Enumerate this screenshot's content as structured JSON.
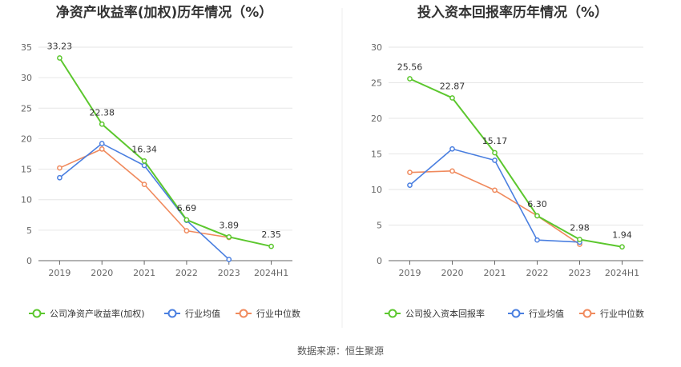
{
  "source": "数据来源：恒生聚源",
  "legend_labels": {
    "average": "行业均值",
    "median": "行业中位数"
  },
  "colors": {
    "company": "#5cc72e",
    "average": "#4a7fe0",
    "median": "#f08a5d"
  },
  "chart_data": [
    {
      "type": "line",
      "title": "净资产收益率(加权)历年情况（%）",
      "categories": [
        "2019",
        "2020",
        "2021",
        "2022",
        "2023",
        "2024H1"
      ],
      "ylim": [
        0,
        35
      ],
      "yticks": [
        0,
        5,
        10,
        15,
        20,
        25,
        30,
        35
      ],
      "grid": true,
      "legend": "bottom",
      "series": [
        {
          "name": "公司净资产收益率(加权)",
          "key": "company",
          "values": [
            33.23,
            22.38,
            16.34,
            6.69,
            3.89,
            2.35
          ],
          "labels": [
            "33.23",
            "22.38",
            "16.34",
            "6.69",
            "3.89",
            "2.35"
          ]
        },
        {
          "name": "行业均值",
          "key": "average",
          "values": [
            13.6,
            19.2,
            15.6,
            6.6,
            0.2,
            null
          ]
        },
        {
          "name": "行业中位数",
          "key": "median",
          "values": [
            15.2,
            18.3,
            12.5,
            4.9,
            3.8,
            null
          ]
        }
      ]
    },
    {
      "type": "line",
      "title": "投入资本回报率历年情况（%）",
      "categories": [
        "2019",
        "2020",
        "2021",
        "2022",
        "2023",
        "2024H1"
      ],
      "ylim": [
        0,
        30
      ],
      "yticks": [
        0,
        5,
        10,
        15,
        20,
        25,
        30
      ],
      "grid": true,
      "legend": "bottom",
      "series": [
        {
          "name": "公司投入资本回报率",
          "key": "company",
          "values": [
            25.56,
            22.87,
            15.17,
            6.3,
            2.98,
            1.94
          ],
          "labels": [
            "25.56",
            "22.87",
            "15.17",
            "6.30",
            "2.98",
            "1.94"
          ]
        },
        {
          "name": "行业均值",
          "key": "average",
          "values": [
            10.6,
            15.7,
            14.1,
            2.9,
            2.6,
            null
          ]
        },
        {
          "name": "行业中位数",
          "key": "median",
          "values": [
            12.4,
            12.6,
            9.9,
            6.3,
            2.3,
            null
          ]
        }
      ]
    }
  ]
}
